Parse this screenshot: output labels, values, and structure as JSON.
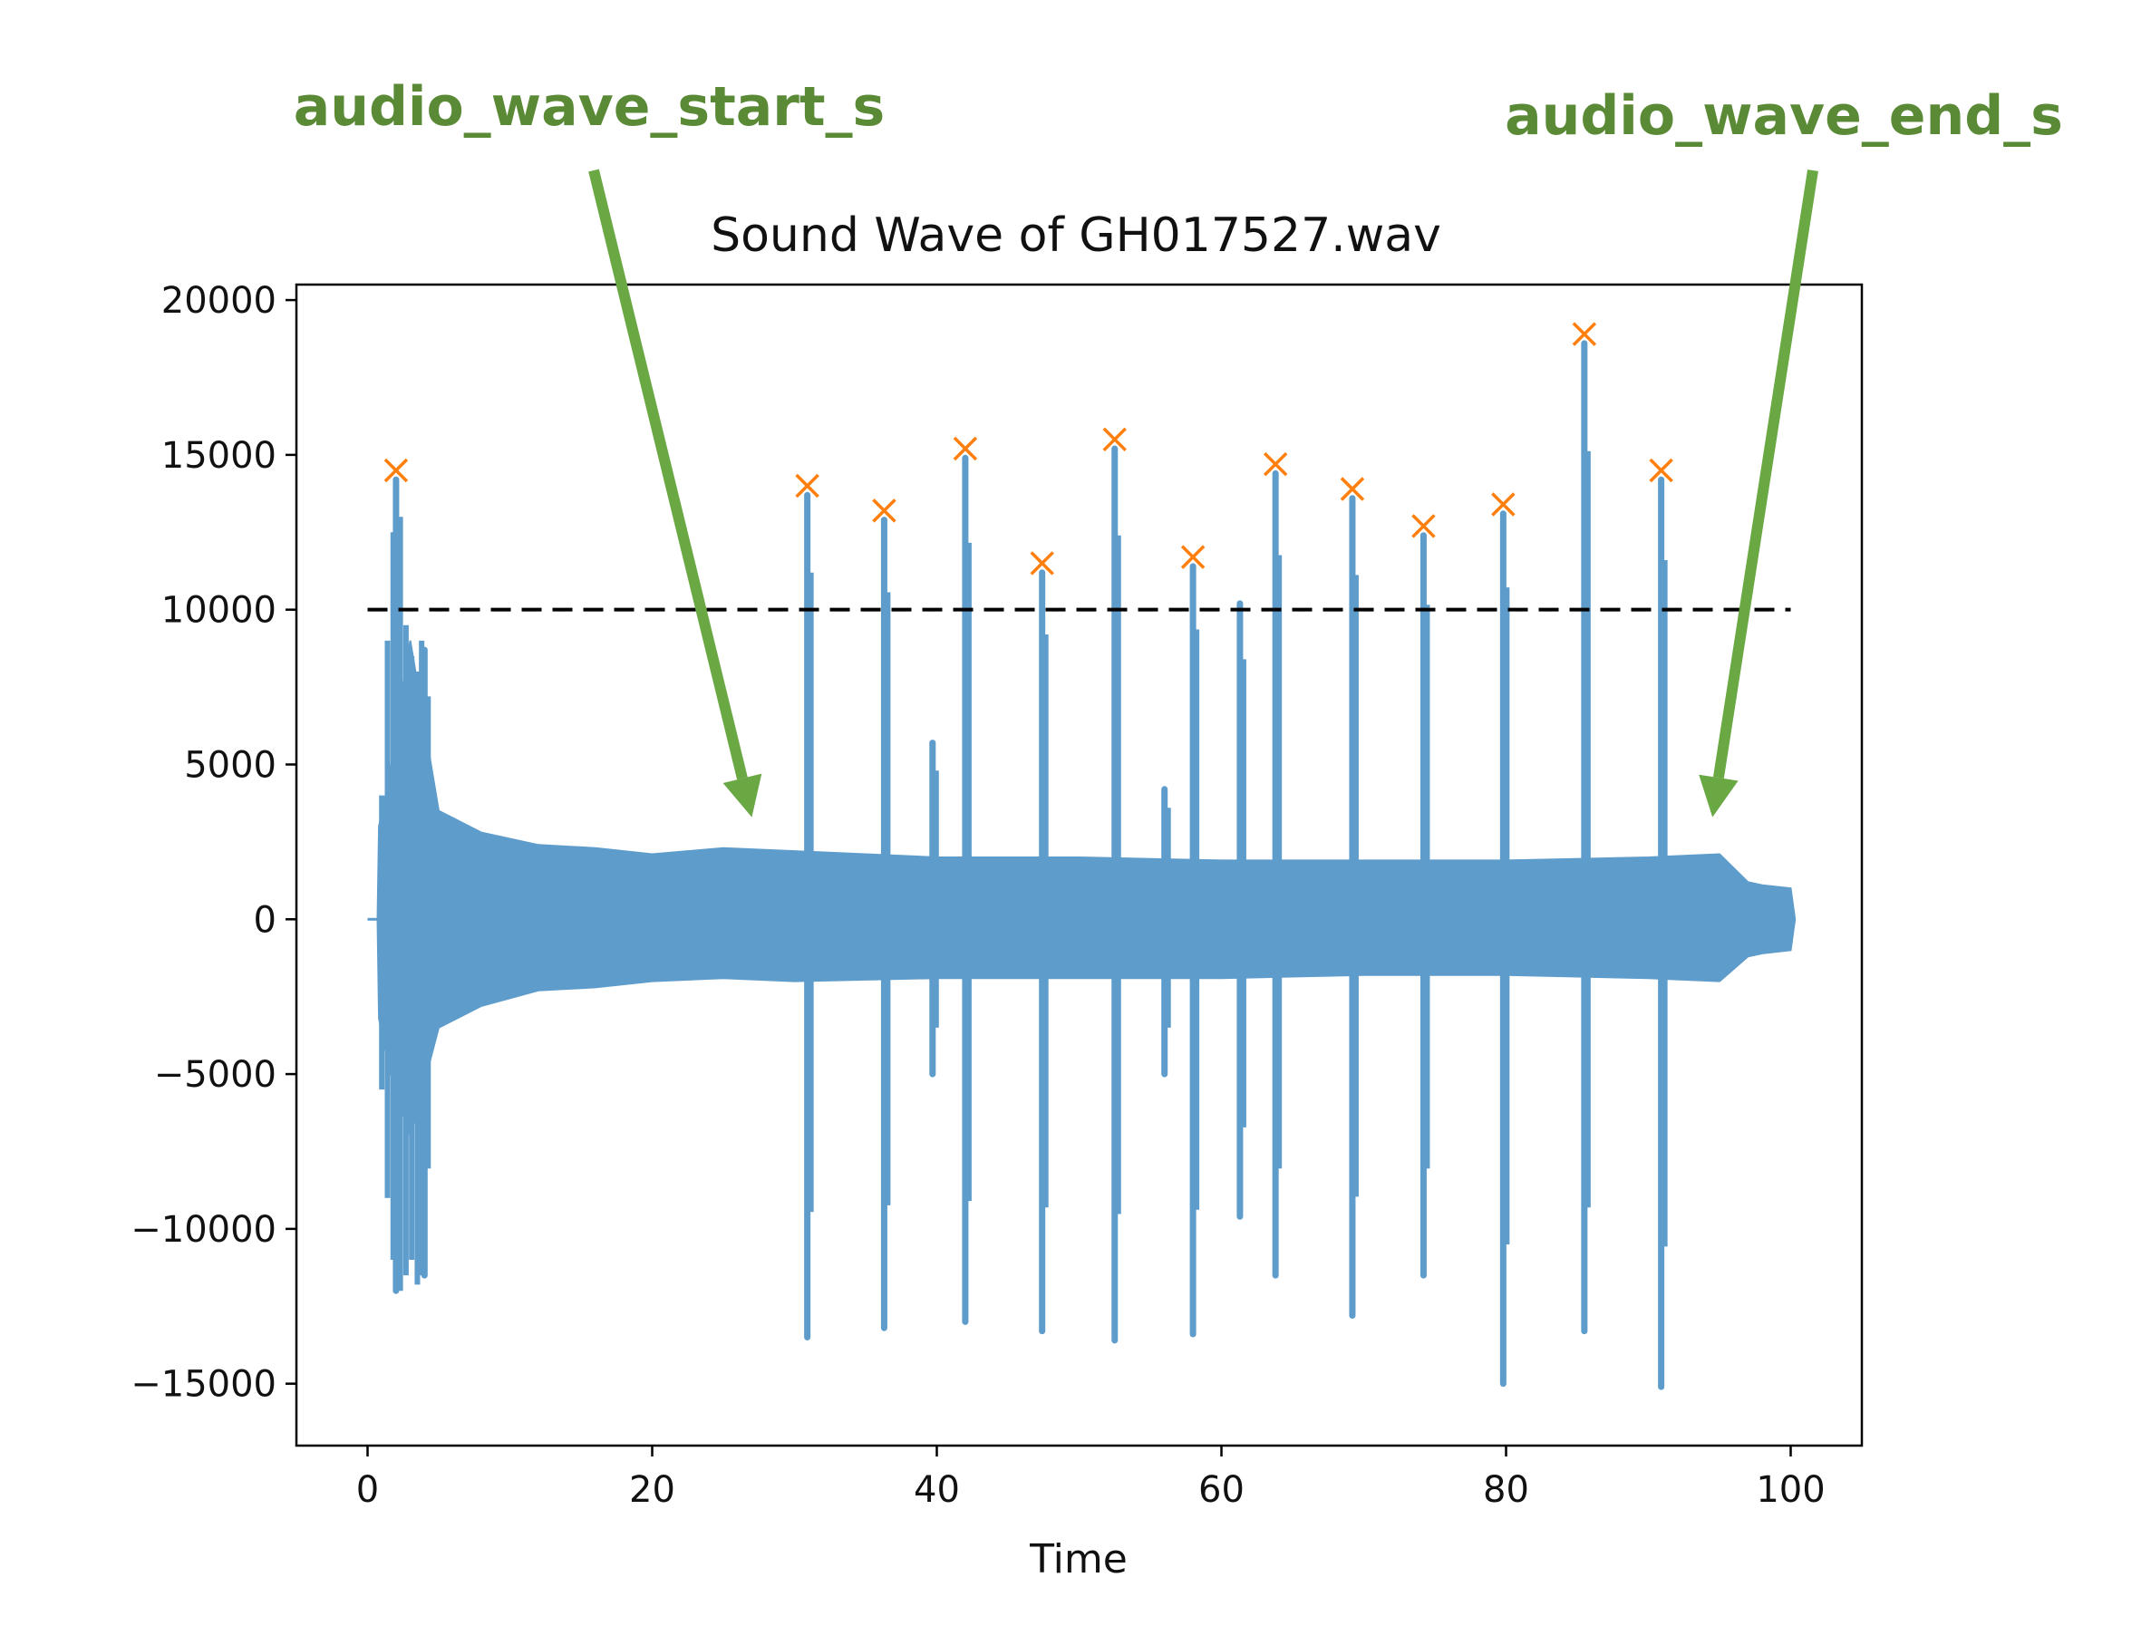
{
  "annotations": {
    "start_label": "audio_wave_start_s",
    "end_label": "audio_wave_end_s",
    "color": "#6aa844",
    "text_color": "#5a8a36",
    "start_arrow_x": 27,
    "start_arrow_y": 3300,
    "end_arrow_x": 94.5,
    "end_arrow_y": 3300
  },
  "chart_data": {
    "type": "line",
    "title": "Sound Wave of GH017527.wav",
    "xlabel": "Time",
    "ylabel": "",
    "xlim": [
      -5,
      105
    ],
    "ylim": [
      -17000,
      20500
    ],
    "xticks": [
      0,
      20,
      40,
      60,
      80,
      100
    ],
    "xtick_labels": [
      "0",
      "20",
      "40",
      "60",
      "80",
      "100"
    ],
    "yticks": [
      20000,
      15000,
      10000,
      5000,
      0,
      -5000,
      -10000,
      -15000
    ],
    "ytick_labels": [
      "20000",
      "15000",
      "10000",
      "5000",
      "0",
      "−5000",
      "−10000",
      "−15000"
    ],
    "grid": false,
    "wave_color": "#5e9ccb",
    "peak_color": "#ff7f0e",
    "threshold": {
      "y": 10000,
      "x_start": 0,
      "x_end": 100,
      "style": "dashed",
      "color": "#000000"
    },
    "wave_envelope": {
      "x": [
        0,
        0.7,
        0.8,
        1.5,
        3,
        5,
        8,
        12,
        16,
        20,
        25,
        30,
        40,
        50,
        60,
        70,
        80,
        90,
        95,
        97,
        98,
        100,
        100.3
      ],
      "upper": [
        0,
        0,
        3000,
        4500,
        9000,
        3500,
        2800,
        2400,
        2300,
        2100,
        2300,
        2200,
        2000,
        2000,
        1900,
        1900,
        1900,
        2000,
        2100,
        1200,
        1100,
        1000,
        0
      ],
      "lower": [
        0,
        0,
        -3200,
        -4800,
        -7000,
        -3500,
        -2800,
        -2300,
        -2200,
        -2000,
        -1900,
        -2000,
        -1900,
        -1900,
        -1900,
        -1800,
        -1800,
        -1900,
        -2000,
        -1200,
        -1100,
        -1000,
        0
      ]
    },
    "peaks": [
      {
        "x": 2.0,
        "y": 14500,
        "min": -12000
      },
      {
        "x": 30.9,
        "y": 14000,
        "min": -13500
      },
      {
        "x": 36.3,
        "y": 13200,
        "min": -13200
      },
      {
        "x": 42.0,
        "y": 15200,
        "min": -13000
      },
      {
        "x": 47.4,
        "y": 11500,
        "min": -13300
      },
      {
        "x": 52.5,
        "y": 15500,
        "min": -13600
      },
      {
        "x": 58.0,
        "y": 11700,
        "min": -13400
      },
      {
        "x": 63.8,
        "y": 14700,
        "min": -11500
      },
      {
        "x": 69.2,
        "y": 13900,
        "min": -12800
      },
      {
        "x": 74.2,
        "y": 12700,
        "min": -11500
      },
      {
        "x": 79.8,
        "y": 13400,
        "min": -15000
      },
      {
        "x": 85.5,
        "y": 18900,
        "min": -13300
      },
      {
        "x": 90.9,
        "y": 14500,
        "min": -15100
      }
    ],
    "secondary_spikes": [
      {
        "x": 4.0,
        "y": 9000,
        "min": -11500
      },
      {
        "x": 39.7,
        "y": 6000,
        "min": -5000
      },
      {
        "x": 56.0,
        "y": 4500,
        "min": -5000
      },
      {
        "x": 61.3,
        "y": 10500,
        "min": -9600
      }
    ]
  }
}
